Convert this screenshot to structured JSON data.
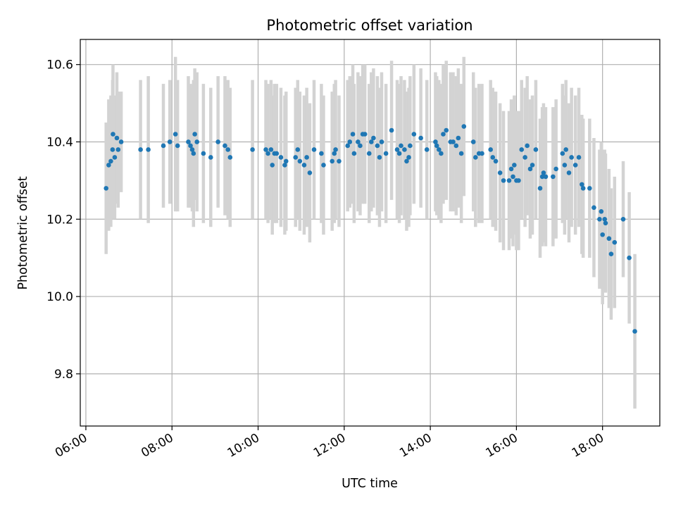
{
  "chart_data": {
    "type": "scatter",
    "title": "Photometric offset variation",
    "xlabel": "UTC time",
    "ylabel": "Photometric offset",
    "x_unit": "hours UTC",
    "xlim": [
      5.87,
      19.33
    ],
    "ylim": [
      9.665,
      10.665
    ],
    "xticks": [
      {
        "value": 6,
        "label": "06:00"
      },
      {
        "value": 8,
        "label": "08:00"
      },
      {
        "value": 10,
        "label": "10:00"
      },
      {
        "value": 12,
        "label": "12:00"
      },
      {
        "value": 14,
        "label": "14:00"
      },
      {
        "value": 16,
        "label": "16:00"
      },
      {
        "value": 18,
        "label": "18:00"
      }
    ],
    "yticks": [
      {
        "value": 9.8,
        "label": "9.8"
      },
      {
        "value": 10.0,
        "label": "10.0"
      },
      {
        "value": 10.2,
        "label": "10.2"
      },
      {
        "value": 10.4,
        "label": "10.4"
      },
      {
        "value": 10.6,
        "label": "10.6"
      }
    ],
    "grid": true,
    "colors": {
      "marker": "#1f77b4",
      "errorbar": "#d3d3d3",
      "grid": "#b0b0b0"
    },
    "series": [
      {
        "points": [
          [
            6.47,
            10.28,
            0.17
          ],
          [
            6.53,
            10.34,
            0.17
          ],
          [
            6.58,
            10.35,
            0.17
          ],
          [
            6.62,
            10.38,
            0.18
          ],
          [
            6.63,
            10.42,
            0.18
          ],
          [
            6.67,
            10.36,
            0.16
          ],
          [
            6.72,
            10.41,
            0.17
          ],
          [
            6.75,
            10.38,
            0.15
          ],
          [
            6.82,
            10.4,
            0.13
          ],
          [
            7.27,
            10.38,
            0.18
          ],
          [
            7.45,
            10.38,
            0.19
          ],
          [
            7.8,
            10.39,
            0.16
          ],
          [
            7.95,
            10.4,
            0.16
          ],
          [
            8.08,
            10.42,
            0.2
          ],
          [
            8.13,
            10.39,
            0.17
          ],
          [
            8.38,
            10.4,
            0.17
          ],
          [
            8.43,
            10.39,
            0.16
          ],
          [
            8.47,
            10.38,
            0.16
          ],
          [
            8.5,
            10.37,
            0.19
          ],
          [
            8.53,
            10.42,
            0.17
          ],
          [
            8.58,
            10.4,
            0.18
          ],
          [
            8.73,
            10.37,
            0.18
          ],
          [
            8.9,
            10.36,
            0.18
          ],
          [
            9.07,
            10.4,
            0.17
          ],
          [
            9.23,
            10.39,
            0.18
          ],
          [
            9.3,
            10.38,
            0.18
          ],
          [
            9.35,
            10.36,
            0.18
          ],
          [
            9.87,
            10.38,
            0.18
          ],
          [
            10.18,
            10.38,
            0.18
          ],
          [
            10.23,
            10.37,
            0.18
          ],
          [
            10.3,
            10.38,
            0.18
          ],
          [
            10.33,
            10.34,
            0.18
          ],
          [
            10.38,
            10.37,
            0.18
          ],
          [
            10.43,
            10.37,
            0.18
          ],
          [
            10.53,
            10.36,
            0.18
          ],
          [
            10.62,
            10.34,
            0.18
          ],
          [
            10.65,
            10.35,
            0.18
          ],
          [
            10.87,
            10.36,
            0.18
          ],
          [
            10.92,
            10.38,
            0.18
          ],
          [
            10.97,
            10.35,
            0.18
          ],
          [
            11.07,
            10.34,
            0.18
          ],
          [
            11.13,
            10.36,
            0.18
          ],
          [
            11.2,
            10.32,
            0.18
          ],
          [
            11.3,
            10.38,
            0.18
          ],
          [
            11.47,
            10.37,
            0.18
          ],
          [
            11.52,
            10.34,
            0.18
          ],
          [
            11.72,
            10.35,
            0.18
          ],
          [
            11.77,
            10.37,
            0.18
          ],
          [
            11.8,
            10.38,
            0.18
          ],
          [
            11.88,
            10.35,
            0.17
          ],
          [
            12.08,
            10.39,
            0.17
          ],
          [
            12.13,
            10.4,
            0.17
          ],
          [
            12.2,
            10.42,
            0.18
          ],
          [
            12.23,
            10.37,
            0.18
          ],
          [
            12.32,
            10.4,
            0.18
          ],
          [
            12.37,
            10.39,
            0.18
          ],
          [
            12.43,
            10.42,
            0.18
          ],
          [
            12.48,
            10.42,
            0.18
          ],
          [
            12.58,
            10.37,
            0.18
          ],
          [
            12.63,
            10.4,
            0.18
          ],
          [
            12.68,
            10.41,
            0.18
          ],
          [
            12.77,
            10.39,
            0.18
          ],
          [
            12.82,
            10.36,
            0.18
          ],
          [
            12.87,
            10.4,
            0.18
          ],
          [
            12.97,
            10.37,
            0.18
          ],
          [
            13.1,
            10.43,
            0.18
          ],
          [
            13.23,
            10.38,
            0.18
          ],
          [
            13.28,
            10.37,
            0.18
          ],
          [
            13.32,
            10.39,
            0.18
          ],
          [
            13.4,
            10.38,
            0.18
          ],
          [
            13.45,
            10.35,
            0.18
          ],
          [
            13.5,
            10.36,
            0.18
          ],
          [
            13.53,
            10.39,
            0.18
          ],
          [
            13.62,
            10.42,
            0.18
          ],
          [
            13.78,
            10.41,
            0.18
          ],
          [
            13.92,
            10.38,
            0.18
          ],
          [
            14.12,
            10.4,
            0.18
          ],
          [
            14.15,
            10.39,
            0.18
          ],
          [
            14.2,
            10.38,
            0.18
          ],
          [
            14.25,
            10.37,
            0.18
          ],
          [
            14.3,
            10.42,
            0.18
          ],
          [
            14.37,
            10.43,
            0.18
          ],
          [
            14.47,
            10.4,
            0.18
          ],
          [
            14.53,
            10.4,
            0.18
          ],
          [
            14.6,
            10.39,
            0.18
          ],
          [
            14.65,
            10.41,
            0.18
          ],
          [
            14.72,
            10.37,
            0.18
          ],
          [
            14.78,
            10.44,
            0.18
          ],
          [
            15.0,
            10.4,
            0.18
          ],
          [
            15.05,
            10.36,
            0.18
          ],
          [
            15.13,
            10.37,
            0.18
          ],
          [
            15.2,
            10.37,
            0.18
          ],
          [
            15.4,
            10.38,
            0.18
          ],
          [
            15.45,
            10.36,
            0.18
          ],
          [
            15.52,
            10.35,
            0.18
          ],
          [
            15.62,
            10.32,
            0.18
          ],
          [
            15.7,
            10.3,
            0.18
          ],
          [
            15.83,
            10.3,
            0.18
          ],
          [
            15.88,
            10.33,
            0.18
          ],
          [
            15.92,
            10.31,
            0.18
          ],
          [
            15.95,
            10.34,
            0.18
          ],
          [
            16.0,
            10.3,
            0.18
          ],
          [
            16.05,
            10.3,
            0.18
          ],
          [
            16.12,
            10.38,
            0.18
          ],
          [
            16.2,
            10.36,
            0.18
          ],
          [
            16.25,
            10.39,
            0.18
          ],
          [
            16.32,
            10.33,
            0.18
          ],
          [
            16.37,
            10.34,
            0.18
          ],
          [
            16.45,
            10.38,
            0.18
          ],
          [
            16.55,
            10.28,
            0.18
          ],
          [
            16.6,
            10.31,
            0.18
          ],
          [
            16.63,
            10.32,
            0.18
          ],
          [
            16.68,
            10.31,
            0.18
          ],
          [
            16.85,
            10.31,
            0.18
          ],
          [
            16.92,
            10.33,
            0.18
          ],
          [
            17.07,
            10.37,
            0.18
          ],
          [
            17.12,
            10.34,
            0.18
          ],
          [
            17.15,
            10.38,
            0.18
          ],
          [
            17.22,
            10.32,
            0.18
          ],
          [
            17.28,
            10.36,
            0.18
          ],
          [
            17.37,
            10.34,
            0.18
          ],
          [
            17.45,
            10.36,
            0.18
          ],
          [
            17.52,
            10.29,
            0.18
          ],
          [
            17.55,
            10.28,
            0.18
          ],
          [
            17.7,
            10.28,
            0.18
          ],
          [
            17.8,
            10.23,
            0.18
          ],
          [
            17.93,
            10.2,
            0.18
          ],
          [
            17.97,
            10.22,
            0.18
          ],
          [
            18.0,
            10.16,
            0.18
          ],
          [
            18.05,
            10.2,
            0.18
          ],
          [
            18.07,
            10.19,
            0.18
          ],
          [
            18.15,
            10.15,
            0.18
          ],
          [
            18.2,
            10.11,
            0.17
          ],
          [
            18.28,
            10.14,
            0.17
          ],
          [
            18.48,
            10.2,
            0.15
          ],
          [
            18.62,
            10.1,
            0.17
          ],
          [
            18.75,
            9.91,
            0.2
          ]
        ]
      }
    ]
  }
}
